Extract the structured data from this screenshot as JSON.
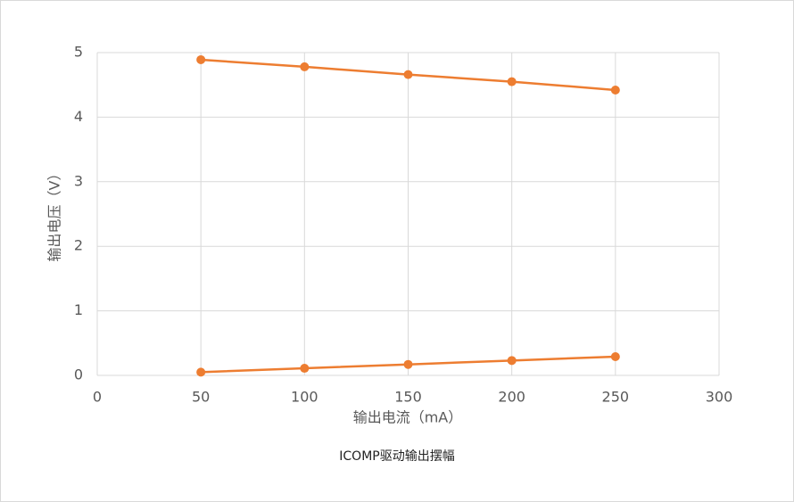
{
  "chart_data": {
    "type": "line",
    "title": "ICOMP驱动输出摆幅",
    "xlabel": "输出电流（mA）",
    "ylabel": "输出电压（V）",
    "x": [
      50,
      100,
      150,
      200,
      250
    ],
    "series": [
      {
        "color": "#ed7d31",
        "values": [
          4.89,
          4.78,
          4.66,
          4.55,
          4.42
        ]
      },
      {
        "color": "#ed7d31",
        "values": [
          0.05,
          0.11,
          0.17,
          0.23,
          0.29
        ]
      }
    ],
    "marker": "circle",
    "xlim": [
      0,
      300
    ],
    "xticks": [
      0,
      50,
      100,
      150,
      200,
      250,
      300
    ],
    "ylim": [
      0,
      5
    ],
    "yticks": [
      0,
      1,
      2,
      3,
      4,
      5
    ],
    "grid": true
  }
}
